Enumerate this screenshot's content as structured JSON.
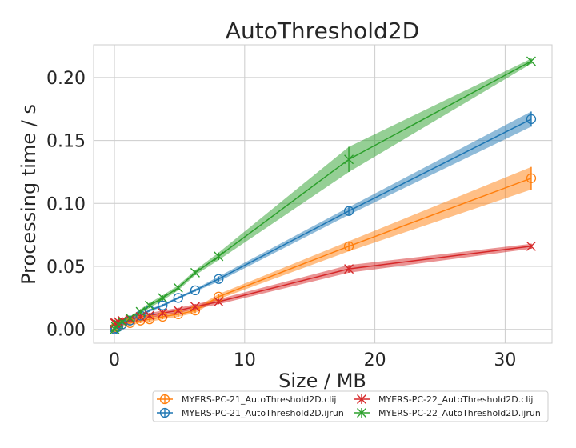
{
  "chart_data": {
    "type": "line",
    "title": "AutoThreshold2D",
    "xlabel": "Size / MB",
    "ylabel": "Processing time / s",
    "xlim": [
      -1.6,
      33.6
    ],
    "ylim": [
      -0.011,
      0.226
    ],
    "xticks": [
      0,
      10,
      20,
      30
    ],
    "xtick_labels": [
      "0",
      "10",
      "20",
      "30"
    ],
    "yticks": [
      0.0,
      0.05,
      0.1,
      0.15,
      0.2
    ],
    "ytick_labels": [
      "0.00",
      "0.05",
      "0.10",
      "0.15",
      "0.20"
    ],
    "grid": true,
    "legend_position": "bottom-right, outside below plot, 2 columns",
    "series": [
      {
        "name": "MYERS-PC-21_AutoThreshold2D.clij",
        "color": "#ff7f0e",
        "marker": "circle",
        "x": [
          0.02,
          0.1,
          0.3,
          0.6,
          1.2,
          2.0,
          2.7,
          3.7,
          4.9,
          6.2,
          8.0,
          18.0,
          32.0
        ],
        "y": [
          0.001,
          0.002,
          0.003,
          0.004,
          0.005,
          0.007,
          0.008,
          0.01,
          0.012,
          0.015,
          0.026,
          0.066,
          0.12
        ],
        "band": [
          0.002,
          0.002,
          0.002,
          0.002,
          0.002,
          0.002,
          0.002,
          0.002,
          0.002,
          0.002,
          0.002,
          0.004,
          0.009
        ]
      },
      {
        "name": "MYERS-PC-21_AutoThreshold2D.ijrun",
        "color": "#1f77b4",
        "marker": "circle",
        "x": [
          0.02,
          0.1,
          0.3,
          0.6,
          1.2,
          2.0,
          2.7,
          3.7,
          4.9,
          6.2,
          8.0,
          18.0,
          32.0
        ],
        "y": [
          0.0,
          0.001,
          0.002,
          0.004,
          0.007,
          0.011,
          0.015,
          0.019,
          0.025,
          0.031,
          0.04,
          0.094,
          0.167
        ],
        "band": [
          0.001,
          0.001,
          0.001,
          0.001,
          0.001,
          0.001,
          0.001,
          0.001,
          0.001,
          0.001,
          0.002,
          0.003,
          0.006
        ]
      },
      {
        "name": "MYERS-PC-22_AutoThreshold2D.clij",
        "color": "#d62728",
        "marker": "x",
        "x": [
          0.02,
          0.1,
          0.3,
          0.6,
          1.2,
          2.0,
          2.7,
          3.7,
          4.9,
          6.2,
          8.0,
          18.0,
          32.0
        ],
        "y": [
          0.005,
          0.005,
          0.006,
          0.007,
          0.008,
          0.01,
          0.011,
          0.013,
          0.015,
          0.018,
          0.022,
          0.048,
          0.066
        ],
        "band": [
          0.002,
          0.002,
          0.002,
          0.002,
          0.002,
          0.002,
          0.002,
          0.002,
          0.002,
          0.002,
          0.002,
          0.003,
          0.002
        ]
      },
      {
        "name": "MYERS-PC-22_AutoThreshold2D.ijrun",
        "color": "#2ca02c",
        "marker": "x",
        "x": [
          0.02,
          0.1,
          0.3,
          0.6,
          1.2,
          2.0,
          2.7,
          3.7,
          4.9,
          6.2,
          8.0,
          18.0,
          32.0
        ],
        "y": [
          0.0,
          0.002,
          0.004,
          0.006,
          0.009,
          0.014,
          0.019,
          0.025,
          0.033,
          0.045,
          0.058,
          0.135,
          0.213
        ],
        "band": [
          0.001,
          0.001,
          0.001,
          0.001,
          0.001,
          0.002,
          0.002,
          0.002,
          0.002,
          0.002,
          0.003,
          0.01,
          0.002
        ]
      }
    ]
  }
}
